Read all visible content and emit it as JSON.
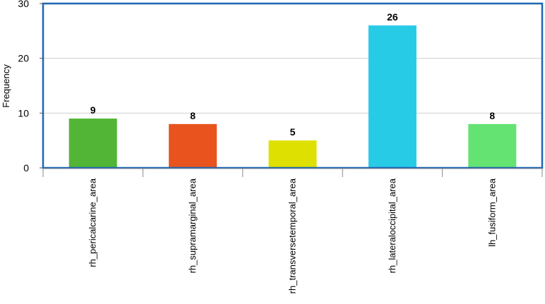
{
  "chart_data": {
    "type": "bar",
    "title": "",
    "xlabel": "",
    "ylabel": "Frequency",
    "ylim": [
      0,
      30
    ],
    "yticks": [
      0,
      10,
      20,
      30
    ],
    "grid": true,
    "legend": "none",
    "categories": [
      "rh_pericalcarine_area",
      "rh_supramarginal_area",
      "rh_transversetemporal_area",
      "rh_lateraloccipital_area",
      "lh_fusiform_area"
    ],
    "values": [
      9,
      8,
      5,
      26,
      8
    ],
    "colors": [
      "#52b535",
      "#e9541e",
      "#dde000",
      "#28cbe6",
      "#64e372"
    ],
    "frame_color": "#1c66b5",
    "grid_color": "#cfcfcf"
  }
}
